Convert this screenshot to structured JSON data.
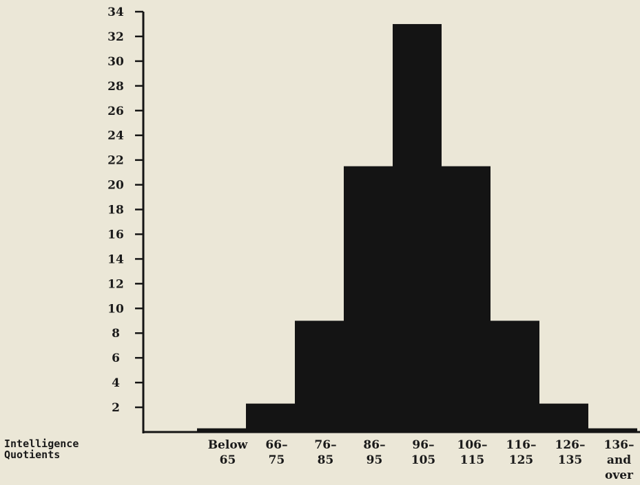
{
  "chart_data": {
    "type": "bar",
    "xlabel": "Intelligence Quotients",
    "ylabel": "",
    "ylim": [
      0,
      34
    ],
    "yticks": [
      2,
      4,
      6,
      8,
      10,
      12,
      14,
      16,
      18,
      20,
      22,
      24,
      26,
      28,
      30,
      32,
      34
    ],
    "grid": false,
    "categories": [
      {
        "line1": "Below",
        "line2": "65",
        "line3": ""
      },
      {
        "line1": "66–",
        "line2": "75",
        "line3": ""
      },
      {
        "line1": "76–",
        "line2": "85",
        "line3": ""
      },
      {
        "line1": "86–",
        "line2": "95",
        "line3": ""
      },
      {
        "line1": "96–",
        "line2": "105",
        "line3": ""
      },
      {
        "line1": "106–",
        "line2": "115",
        "line3": ""
      },
      {
        "line1": "116–",
        "line2": "125",
        "line3": ""
      },
      {
        "line1": "126–",
        "line2": "135",
        "line3": ""
      },
      {
        "line1": "136–",
        "line2": "and",
        "line3": "over"
      }
    ],
    "values": [
      0.3,
      2.3,
      9,
      21.5,
      33,
      21.5,
      9,
      2.3,
      0.3
    ]
  },
  "colors": {
    "bar": "#141414",
    "axis": "#141414",
    "background": "#ebe7d7"
  }
}
